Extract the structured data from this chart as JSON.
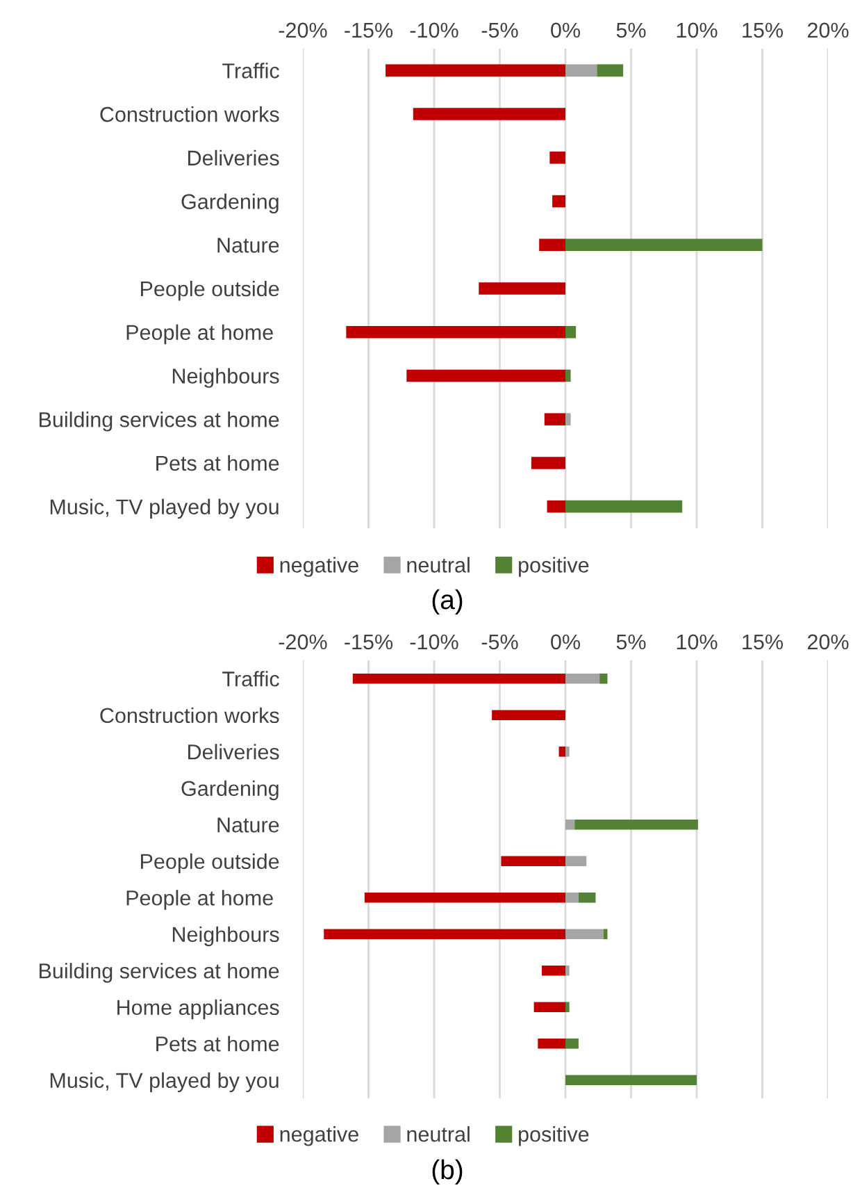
{
  "chart_data": [
    {
      "type": "bar",
      "orientation": "horizontal",
      "stacked": true,
      "categories": [
        "Traffic",
        "Construction works",
        "Deliveries",
        "Gardening",
        "Nature",
        "People outside",
        "People at home ",
        "Neighbours",
        "Building services at home",
        "Pets at home",
        "Music, TV played by you"
      ],
      "series": [
        {
          "name": "negative",
          "color": "#c00000",
          "values": [
            -13.7,
            -11.6,
            -1.2,
            -1.0,
            -2.0,
            -6.6,
            -16.7,
            -12.1,
            -1.6,
            -2.6,
            -1.4
          ]
        },
        {
          "name": "neutral",
          "color": "#a5a5a5",
          "values": [
            2.4,
            null,
            null,
            null,
            null,
            null,
            null,
            null,
            0.4,
            null,
            null
          ]
        },
        {
          "name": "positive",
          "color": "#548235",
          "values": [
            2.0,
            null,
            null,
            null,
            15.0,
            null,
            0.8,
            0.4,
            null,
            null,
            8.9
          ]
        }
      ],
      "xlim": [
        -20,
        20
      ],
      "xticks": [
        {
          "value": -20,
          "label": "-20%"
        },
        {
          "value": -15,
          "label": "-15%"
        },
        {
          "value": -10,
          "label": "-10%"
        },
        {
          "value": -5,
          "label": "-5%"
        },
        {
          "value": 0,
          "label": "0%"
        },
        {
          "value": 5,
          "label": "5%"
        },
        {
          "value": 10,
          "label": "10%"
        },
        {
          "value": 15,
          "label": "15%"
        },
        {
          "value": 20,
          "label": "20%"
        }
      ],
      "grid": "x",
      "legend": "bottom",
      "annotations": [
        "(a)"
      ]
    },
    {
      "type": "bar",
      "orientation": "horizontal",
      "stacked": true,
      "categories": [
        "Traffic",
        "Construction works",
        "Deliveries",
        "Gardening",
        "Nature",
        "People outside",
        "People at home ",
        "Neighbours",
        "Building services at home",
        "Home appliances",
        "Pets at home",
        "Music, TV played by you"
      ],
      "series": [
        {
          "name": "negative",
          "color": "#c00000",
          "values": [
            -16.2,
            -5.6,
            -0.5,
            null,
            null,
            -4.9,
            -15.3,
            -18.4,
            -1.8,
            -2.4,
            -2.1,
            null
          ]
        },
        {
          "name": "neutral",
          "color": "#a5a5a5",
          "values": [
            2.6,
            null,
            0.3,
            null,
            0.7,
            1.6,
            1.0,
            2.9,
            0.3,
            null,
            null,
            null
          ]
        },
        {
          "name": "positive",
          "color": "#548235",
          "values": [
            0.6,
            null,
            null,
            null,
            9.4,
            null,
            1.3,
            0.3,
            null,
            0.3,
            1.0,
            10.0
          ]
        }
      ],
      "xlim": [
        -20,
        20
      ],
      "xticks": [
        {
          "value": -20,
          "label": "-20%"
        },
        {
          "value": -15,
          "label": "-15%"
        },
        {
          "value": -10,
          "label": "-10%"
        },
        {
          "value": -5,
          "label": "-5%"
        },
        {
          "value": 0,
          "label": "0%"
        },
        {
          "value": 5,
          "label": "5%"
        },
        {
          "value": 10,
          "label": "10%"
        },
        {
          "value": 15,
          "label": "15%"
        },
        {
          "value": 20,
          "label": "20%"
        }
      ],
      "grid": "x",
      "legend": "bottom",
      "annotations": [
        "(b)"
      ]
    }
  ]
}
